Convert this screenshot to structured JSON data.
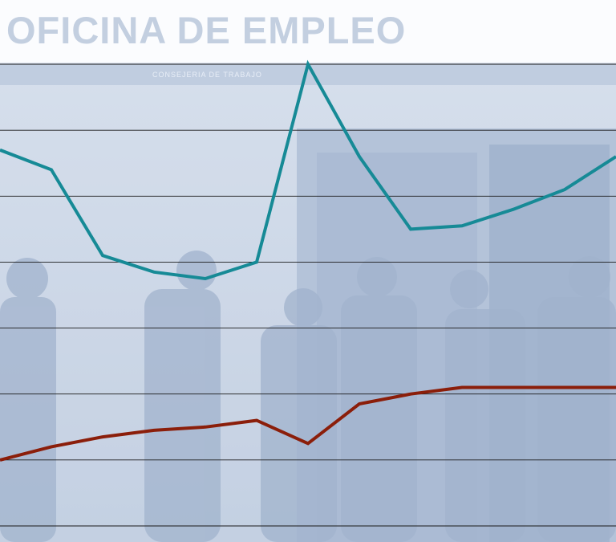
{
  "background": {
    "sign_text": "OFICINA DE EMPLEO",
    "sub_sign_text": "CONSEJERIA DE TRABAJO",
    "tint_color": "#9fb3d1"
  },
  "chart_data": {
    "type": "line",
    "title": "",
    "xlabel": "",
    "ylabel": "",
    "grid": true,
    "ylim": [
      0,
      7
    ],
    "x": [
      0,
      1,
      2,
      3,
      4,
      5,
      6,
      7,
      8,
      9,
      10,
      11,
      12
    ],
    "series": [
      {
        "color": "#168a96",
        "values": [
          5.7,
          5.4,
          4.1,
          3.85,
          3.75,
          4.0,
          7.0,
          5.6,
          4.5,
          4.55,
          4.8,
          5.1,
          5.6
        ]
      },
      {
        "color": "#8b1e0a",
        "values": [
          1.0,
          1.2,
          1.35,
          1.45,
          1.5,
          1.6,
          1.25,
          1.85,
          2.0,
          2.1,
          2.1,
          2.1,
          2.1
        ]
      }
    ]
  }
}
